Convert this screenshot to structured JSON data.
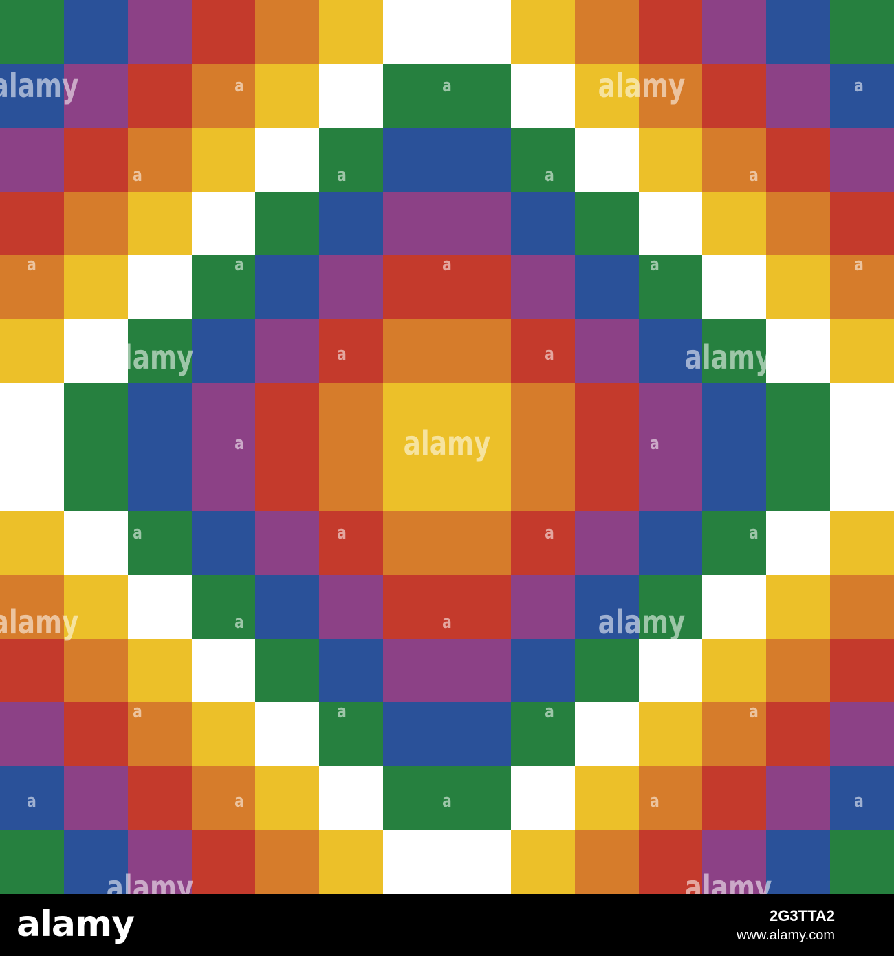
{
  "palette": {
    "G": "#26803f",
    "B": "#2a5199",
    "P": "#8c4186",
    "R": "#c43a2c",
    "O": "#d67c2b",
    "Y": "#ecc029",
    "W": "#ffffff"
  },
  "pattern_rows": [
    "GBPROYWWYORPBG",
    "BPROYWGGWYORPB",
    "PROYWGBBGWYORP",
    "ROYWGBPPBGWYOR",
    "OYWGBPRRPBGWYO",
    "YWGBPROORPBGWY",
    "WGBPROYYORPBGW",
    "WGBPROYYORPBGW",
    "YWGBPROORPBGWY",
    "OYWGBPRRPBGWYO",
    "ROYWGBPPBGWYOR",
    "PROYWGBBGWYORP",
    "BPROYWGGWYORPB",
    "GBPROYWWYORPBG"
  ],
  "watermark": {
    "word": "alamy",
    "letter": "a"
  },
  "footer": {
    "logo": "alamy",
    "image_id": "2G3TTA2",
    "url": "www.alamy.com"
  }
}
